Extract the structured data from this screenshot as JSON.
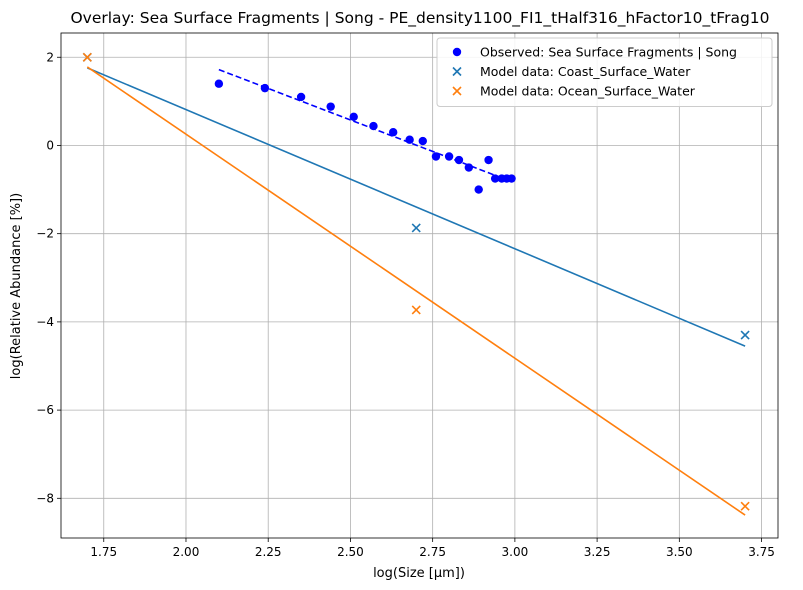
{
  "chart_data": {
    "type": "scatter",
    "title": "Overlay: Sea Surface Fragments | Song - PE_density1100_FI1_tHalf316_hFactor10_tFrag10",
    "xlabel": "log(Size [µm])",
    "ylabel": "log(Relative Abundance [%])",
    "xlim": [
      1.62,
      3.8
    ],
    "ylim": [
      -8.9,
      2.55
    ],
    "x_ticks": [
      1.75,
      2.0,
      2.25,
      2.5,
      2.75,
      3.0,
      3.25,
      3.5,
      3.75
    ],
    "x_tick_labels": [
      "1.75",
      "2.00",
      "2.25",
      "2.50",
      "2.75",
      "3.00",
      "3.25",
      "3.50",
      "3.75"
    ],
    "y_ticks": [
      -8,
      -6,
      -4,
      -2,
      0,
      2
    ],
    "y_tick_labels": [
      "−8",
      "−6",
      "−4",
      "−2",
      "0",
      "2"
    ],
    "grid": true,
    "legend_position": "upper right",
    "series": [
      {
        "name": "Observed: Sea Surface Fragments | Song",
        "kind": "scatter",
        "marker": "circle",
        "color": "#0000ff",
        "x": [
          2.1,
          2.24,
          2.35,
          2.44,
          2.51,
          2.57,
          2.63,
          2.68,
          2.72,
          2.76,
          2.8,
          2.83,
          2.86,
          2.89,
          2.92,
          2.94,
          2.96,
          2.975,
          2.99
        ],
        "y": [
          1.4,
          1.3,
          1.1,
          0.88,
          0.65,
          0.44,
          0.3,
          0.13,
          0.1,
          -0.25,
          -0.25,
          -0.33,
          -0.5,
          -1.0,
          -0.33,
          -0.75,
          -0.75,
          -0.75,
          -0.75
        ]
      },
      {
        "kind": "line",
        "style": "dashed",
        "color": "#0000ff",
        "x": [
          2.1,
          2.99
        ],
        "y": [
          1.72,
          -0.82
        ]
      },
      {
        "name": "Model data: Coast_Surface_Water",
        "kind": "scatter",
        "marker": "x",
        "color": "#1f77b4",
        "x": [
          1.7,
          2.7,
          3.7
        ],
        "y": [
          2.0,
          -1.87,
          -4.3
        ]
      },
      {
        "kind": "line",
        "style": "solid",
        "color": "#1f77b4",
        "x": [
          1.7,
          3.7
        ],
        "y": [
          1.76,
          -4.55
        ]
      },
      {
        "name": "Model data: Ocean_Surface_Water",
        "kind": "scatter",
        "marker": "x",
        "color": "#ff7f0e",
        "x": [
          1.7,
          2.7,
          3.7
        ],
        "y": [
          2.0,
          -3.73,
          -8.18
        ]
      },
      {
        "kind": "line",
        "style": "solid",
        "color": "#ff7f0e",
        "x": [
          1.7,
          3.7
        ],
        "y": [
          1.78,
          -8.38
        ]
      }
    ]
  }
}
